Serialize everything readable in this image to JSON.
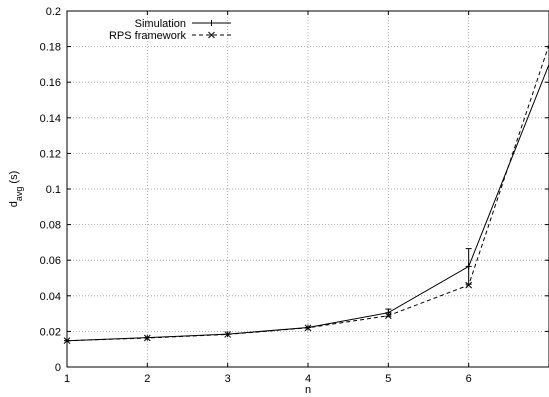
{
  "chart_data": {
    "type": "line",
    "xlabel": "n",
    "ylabel_main": "d",
    "ylabel_sub": "avg",
    "ylabel_unit": " (s)",
    "xlim": [
      1,
      7
    ],
    "ylim": [
      0,
      0.2
    ],
    "xticks": [
      1,
      2,
      3,
      4,
      5,
      6
    ],
    "yticks": [
      0,
      0.02,
      0.04,
      0.06,
      0.08,
      0.1,
      0.12,
      0.14,
      0.16,
      0.18,
      0.2
    ],
    "grid": true,
    "legend_position": "top-left",
    "series": [
      {
        "name": "Simulation",
        "line_style": "solid",
        "marker": "plus",
        "x": [
          1,
          2,
          3,
          4,
          5,
          6,
          7
        ],
        "y": [
          0.0148,
          0.0165,
          0.0185,
          0.0222,
          0.0305,
          0.0565,
          0.17
        ],
        "errors": [
          {
            "x": 5,
            "low": 0.0285,
            "high": 0.0325
          },
          {
            "x": 6,
            "low": 0.0465,
            "high": 0.0665
          }
        ]
      },
      {
        "name": "RPS framework",
        "line_style": "dashed",
        "marker": "cross",
        "x": [
          1,
          2,
          3,
          4,
          5,
          6,
          7
        ],
        "y": [
          0.0148,
          0.0163,
          0.0183,
          0.022,
          0.0288,
          0.046,
          0.181
        ]
      }
    ]
  }
}
